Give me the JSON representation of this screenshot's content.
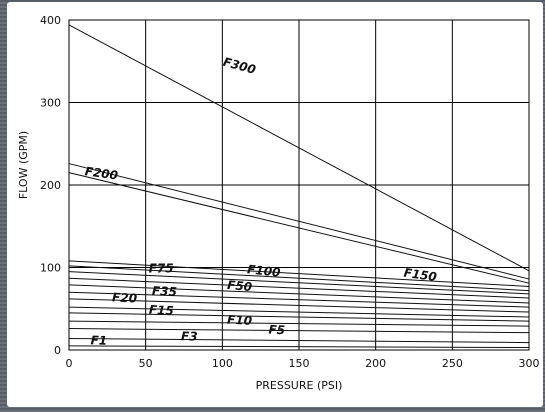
{
  "chart_data": {
    "type": "line",
    "xlabel": "PRESSURE (PSI)",
    "ylabel": "FLOW (GPM)",
    "xlim": [
      0,
      300
    ],
    "ylim": [
      0,
      400
    ],
    "grid": true,
    "x_ticks": [
      "0",
      "50",
      "100",
      "150",
      "200",
      "250",
      "300"
    ],
    "y_ticks": [
      {
        "label": "0",
        "value": 0
      },
      {
        "label": "100",
        "value": 100
      },
      {
        "label": "200",
        "value": 200
      },
      {
        "label": "300",
        "value": 300
      },
      {
        "label": "400",
        "value": 400
      }
    ],
    "colors": {
      "line": "#111111",
      "grid": "#000000",
      "background": "#ffffff"
    },
    "series": [
      {
        "name": "F300",
        "values": [
          [
            0,
            394
          ],
          [
            300,
            96
          ]
        ],
        "label_at": [
          100,
          345
        ],
        "label_angle": 15
      },
      {
        "name": "F200",
        "values": [
          [
            0,
            226
          ],
          [
            300,
            86
          ]
        ],
        "label_at": [
          10,
          212
        ],
        "label_angle": 8
      },
      {
        "name": "",
        "values": [
          [
            0,
            215
          ],
          [
            300,
            81
          ]
        ]
      },
      {
        "name": "",
        "values": [
          [
            0,
            108
          ],
          [
            300,
            77
          ]
        ]
      },
      {
        "name": "F150",
        "values": [
          [
            0,
            102
          ],
          [
            300,
            72
          ]
        ],
        "label_at": [
          218,
          89
        ],
        "label_angle": 8
      },
      {
        "name": "F100",
        "values": [
          [
            0,
            95
          ],
          [
            300,
            68
          ]
        ],
        "label_at": [
          116,
          93
        ],
        "label_angle": 6
      },
      {
        "name": "F75",
        "values": [
          [
            0,
            87
          ],
          [
            300,
            63
          ]
        ],
        "label_at": [
          52,
          94
        ],
        "label_angle": 0
      },
      {
        "name": "F50",
        "values": [
          [
            0,
            79
          ],
          [
            300,
            57
          ]
        ],
        "label_at": [
          103,
          74
        ],
        "label_angle": 5
      },
      {
        "name": "F35",
        "values": [
          [
            0,
            70
          ],
          [
            300,
            52
          ]
        ],
        "label_at": [
          54,
          67
        ],
        "label_angle": 3
      },
      {
        "name": "",
        "values": [
          [
            0,
            62
          ],
          [
            300,
            46
          ]
        ]
      },
      {
        "name": "F20",
        "values": [
          [
            0,
            52
          ],
          [
            300,
            40
          ]
        ],
        "label_at": [
          28,
          59
        ],
        "label_angle": 3
      },
      {
        "name": "F15",
        "values": [
          [
            0,
            45
          ],
          [
            300,
            35
          ]
        ],
        "label_at": [
          52,
          44
        ],
        "label_angle": 3
      },
      {
        "name": "F10",
        "values": [
          [
            0,
            35
          ],
          [
            300,
            29
          ]
        ],
        "label_at": [
          103,
          32
        ],
        "label_angle": 3
      },
      {
        "name": "F5",
        "values": [
          [
            0,
            26
          ],
          [
            300,
            21
          ]
        ],
        "label_at": [
          130,
          20
        ],
        "label_angle": 3
      },
      {
        "name": "F3",
        "values": [
          [
            0,
            14
          ],
          [
            300,
            9
          ]
        ],
        "label_at": [
          73,
          12
        ],
        "label_angle": 2
      },
      {
        "name": "F1",
        "values": [
          [
            0,
            5
          ],
          [
            300,
            3
          ]
        ],
        "label_at": [
          14,
          7
        ],
        "label_angle": 2
      }
    ]
  }
}
